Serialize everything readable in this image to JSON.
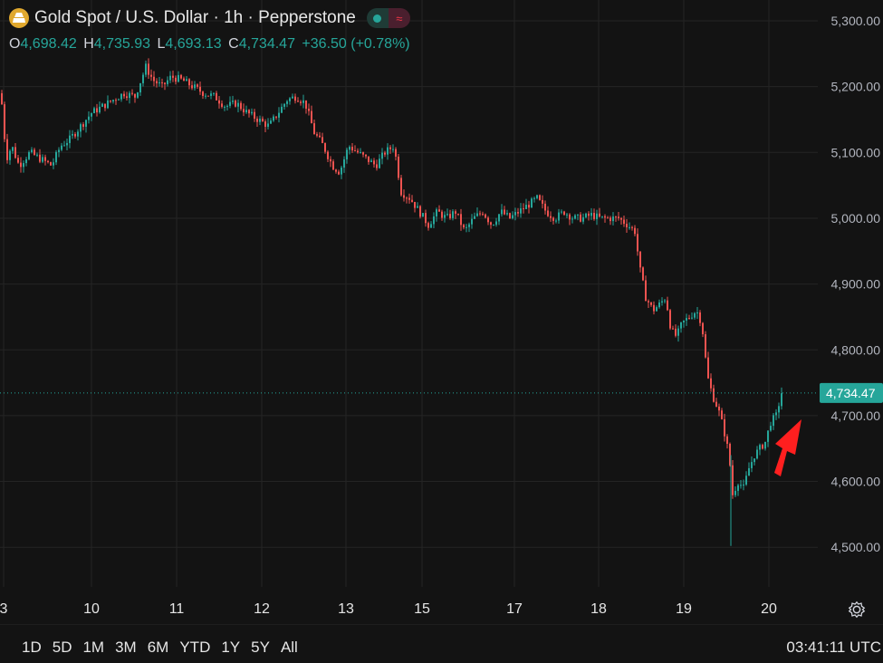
{
  "header": {
    "title": "Gold Spot / U.S. Dollar · 1h · Pepperstone",
    "logo_icon": "gold-bars-icon",
    "market_status_icon": "market-open-dot-icon",
    "indicator_icon": "wave-icon"
  },
  "ohlc": {
    "o_label": "O",
    "o_value": "4,698.42",
    "h_label": "H",
    "h_value": "4,735.93",
    "l_label": "L",
    "l_value": "4,693.13",
    "c_label": "C",
    "c_value": "4,734.47",
    "change": "+36.50 (+0.78%)"
  },
  "chart_data": {
    "type": "candlestick",
    "y_ticks": [
      "5,300.00",
      "5,200.00",
      "5,100.00",
      "5,000.00",
      "4,900.00",
      "4,800.00",
      "4,700.00",
      "4,600.00",
      "4,500.00"
    ],
    "y_tick_values": [
      5300,
      5200,
      5100,
      5000,
      4900,
      4800,
      4700,
      4600,
      4500
    ],
    "x_ticks": [
      "3",
      "10",
      "11",
      "12",
      "13",
      "15",
      "17",
      "18",
      "19",
      "20"
    ],
    "last_price_label": "4,734.47",
    "last_price": 4734.47,
    "grid": true,
    "colors": {
      "up": "#26a69a",
      "down": "#ef5350",
      "background": "#131313",
      "grid": "#242424",
      "annotation_arrow": "#ff1f1f"
    },
    "price_path": [
      [
        0,
        5190
      ],
      [
        6,
        5090
      ],
      [
        12,
        5110
      ],
      [
        20,
        5080
      ],
      [
        32,
        5100
      ],
      [
        44,
        5090
      ],
      [
        56,
        5080
      ],
      [
        66,
        5110
      ],
      [
        76,
        5120
      ],
      [
        88,
        5140
      ],
      [
        100,
        5160
      ],
      [
        112,
        5170
      ],
      [
        124,
        5180
      ],
      [
        136,
        5190
      ],
      [
        148,
        5185
      ],
      [
        160,
        5230
      ],
      [
        168,
        5210
      ],
      [
        178,
        5200
      ],
      [
        188,
        5215
      ],
      [
        200,
        5210
      ],
      [
        212,
        5200
      ],
      [
        224,
        5190
      ],
      [
        236,
        5185
      ],
      [
        248,
        5170
      ],
      [
        260,
        5175
      ],
      [
        272,
        5160
      ],
      [
        284,
        5150
      ],
      [
        296,
        5140
      ],
      [
        306,
        5160
      ],
      [
        316,
        5180
      ],
      [
        326,
        5185
      ],
      [
        336,
        5175
      ],
      [
        346,
        5130
      ],
      [
        356,
        5110
      ],
      [
        366,
        5080
      ],
      [
        374,
        5070
      ],
      [
        384,
        5110
      ],
      [
        394,
        5100
      ],
      [
        404,
        5090
      ],
      [
        414,
        5080
      ],
      [
        424,
        5100
      ],
      [
        434,
        5110
      ],
      [
        442,
        5040
      ],
      [
        452,
        5030
      ],
      [
        462,
        5010
      ],
      [
        472,
        4990
      ],
      [
        482,
        5010
      ],
      [
        492,
        5000
      ],
      [
        502,
        5010
      ],
      [
        512,
        4980
      ],
      [
        522,
        5000
      ],
      [
        532,
        5010
      ],
      [
        542,
        4990
      ],
      [
        552,
        5010
      ],
      [
        562,
        5000
      ],
      [
        572,
        5010
      ],
      [
        582,
        5020
      ],
      [
        592,
        5030
      ],
      [
        602,
        5010
      ],
      [
        612,
        5000
      ],
      [
        622,
        5010
      ],
      [
        632,
        5000
      ],
      [
        642,
        5000
      ],
      [
        652,
        5005
      ],
      [
        662,
        5000
      ],
      [
        672,
        5000
      ],
      [
        682,
        5000
      ],
      [
        692,
        4990
      ],
      [
        700,
        4980
      ],
      [
        706,
        4920
      ],
      [
        712,
        4880
      ],
      [
        720,
        4860
      ],
      [
        728,
        4870
      ],
      [
        734,
        4880
      ],
      [
        740,
        4830
      ],
      [
        746,
        4820
      ],
      [
        752,
        4840
      ],
      [
        760,
        4850
      ],
      [
        768,
        4860
      ],
      [
        774,
        4840
      ],
      [
        780,
        4760
      ],
      [
        786,
        4730
      ],
      [
        792,
        4710
      ],
      [
        798,
        4680
      ],
      [
        804,
        4640
      ],
      [
        808,
        4580
      ],
      [
        814,
        4600
      ],
      [
        820,
        4590
      ],
      [
        826,
        4620
      ],
      [
        832,
        4640
      ],
      [
        838,
        4650
      ],
      [
        844,
        4660
      ],
      [
        850,
        4690
      ],
      [
        856,
        4700
      ],
      [
        862,
        4735
      ]
    ]
  },
  "range_bar": {
    "items": [
      "1D",
      "5D",
      "1M",
      "3M",
      "6M",
      "YTD",
      "1Y",
      "5Y",
      "All"
    ]
  },
  "footer": {
    "clock": "03:41:11 UTC",
    "settings_icon": "gear-icon"
  }
}
